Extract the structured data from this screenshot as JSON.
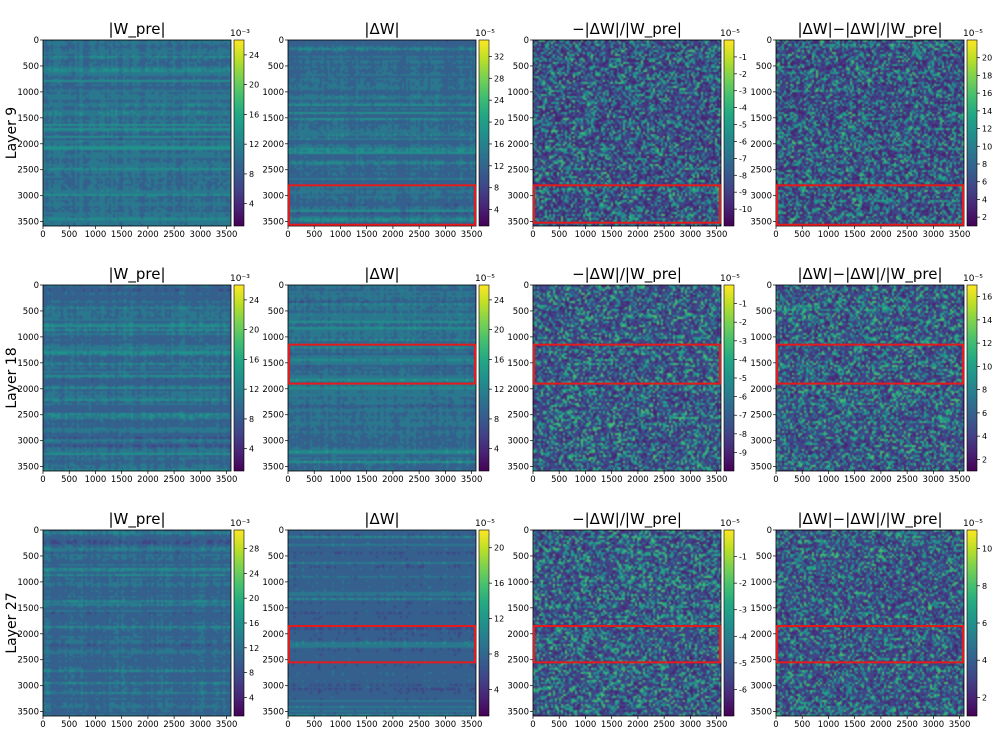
{
  "colors": {
    "viridis": [
      "#440154",
      "#482475",
      "#414487",
      "#355f8d",
      "#2a788e",
      "#21918c",
      "#22a884",
      "#44bf70",
      "#7ad151",
      "#bddf26",
      "#fde725"
    ],
    "highlight": "#e41a1c"
  },
  "chart_data": {
    "type": "heatmap",
    "axis_ticks": [
      "0",
      "500",
      "1000",
      "1500",
      "2000",
      "2500",
      "3000",
      "3500"
    ],
    "axis_range": [
      0,
      3584
    ],
    "rows": [
      {
        "label": "Layer 9",
        "panels": [
          {
            "title": "|W_pre|",
            "exponent": "10⁻³",
            "cb_ticks": [
              "4",
              "8",
              "12",
              "16",
              "20",
              "24"
            ],
            "cb_min": 1,
            "cb_max": 26,
            "style": "smooth",
            "base": 0.36,
            "highlight": null
          },
          {
            "title": "|ΔW|",
            "exponent": "10⁻⁵",
            "cb_ticks": [
              "4",
              "8",
              "12",
              "16",
              "20",
              "24",
              "28",
              "32"
            ],
            "cb_min": 1,
            "cb_max": 35,
            "style": "smooth",
            "base": 0.34,
            "highlight": [
              2800,
              3560
            ]
          },
          {
            "title": "−|ΔW|/|W_pre|",
            "exponent": "10⁻⁵",
            "cb_ticks": [
              "-1",
              "-2",
              "-3",
              "-4",
              "-5",
              "-6",
              "-7",
              "-8",
              "-9",
              "-10"
            ],
            "cb_min": -11,
            "cb_max": 0,
            "style": "speckle",
            "base": 0.1,
            "highlight": [
              2800,
              3520
            ]
          },
          {
            "title": "|ΔW|−|ΔW|/|W_pre|",
            "exponent": "10⁻⁵",
            "cb_ticks": [
              "2",
              "4",
              "6",
              "8",
              "10",
              "12",
              "14",
              "16",
              "18",
              "20"
            ],
            "cb_min": 1,
            "cb_max": 22,
            "style": "speckle",
            "base": 0.1,
            "highlight": [
              2800,
              3560
            ]
          }
        ]
      },
      {
        "label": "Layer 18",
        "panels": [
          {
            "title": "|W_pre|",
            "exponent": "10⁻³",
            "cb_ticks": [
              "4",
              "8",
              "12",
              "16",
              "20",
              "24"
            ],
            "cb_min": 1,
            "cb_max": 26,
            "style": "smooth",
            "base": 0.34,
            "highlight": null
          },
          {
            "title": "|ΔW|",
            "exponent": "10⁻⁵",
            "cb_ticks": [
              "4",
              "8",
              "12",
              "16",
              "20",
              "24"
            ],
            "cb_min": 1,
            "cb_max": 26,
            "style": "smooth",
            "base": 0.36,
            "highlight": [
              1150,
              1900
            ]
          },
          {
            "title": "−|ΔW|/|W_pre|",
            "exponent": "10⁻⁵",
            "cb_ticks": [
              "-1",
              "-2",
              "-3",
              "-4",
              "-5",
              "-6",
              "-7",
              "-8",
              "-9"
            ],
            "cb_min": -10,
            "cb_max": 0,
            "style": "speckle",
            "base": 0.12,
            "highlight": [
              1150,
              1900
            ]
          },
          {
            "title": "|ΔW|−|ΔW|/|W_pre|",
            "exponent": "10⁻⁵",
            "cb_ticks": [
              "2",
              "4",
              "6",
              "8",
              "10",
              "12",
              "14",
              "16"
            ],
            "cb_min": 1,
            "cb_max": 17,
            "style": "speckle",
            "base": 0.12,
            "highlight": [
              1150,
              1900
            ]
          }
        ]
      },
      {
        "label": "Layer 27",
        "panels": [
          {
            "title": "|W_pre|",
            "exponent": "10⁻³",
            "cb_ticks": [
              "4",
              "8",
              "12",
              "16",
              "20",
              "24",
              "28"
            ],
            "cb_min": 1,
            "cb_max": 31,
            "style": "smooth",
            "base": 0.34,
            "highlight": null
          },
          {
            "title": "|ΔW|",
            "exponent": "10⁻⁵",
            "cb_ticks": [
              "4",
              "8",
              "12",
              "16",
              "20"
            ],
            "cb_min": 1,
            "cb_max": 22,
            "style": "smooth",
            "base": 0.3,
            "highlight": [
              1850,
              2550
            ]
          },
          {
            "title": "−|ΔW|/|W_pre|",
            "exponent": "10⁻⁵",
            "cb_ticks": [
              "-1",
              "-2",
              "-3",
              "-4",
              "-5",
              "-6"
            ],
            "cb_min": -7,
            "cb_max": 0,
            "style": "speckle",
            "base": 0.12,
            "highlight": [
              1850,
              2550
            ]
          },
          {
            "title": "|ΔW|−|ΔW|/|W_pre|",
            "exponent": "10⁻⁵",
            "cb_ticks": [
              "2",
              "4",
              "6",
              "8",
              "10"
            ],
            "cb_min": 1,
            "cb_max": 11,
            "style": "speckle",
            "base": 0.12,
            "highlight": [
              1850,
              2550
            ]
          }
        ]
      }
    ]
  }
}
